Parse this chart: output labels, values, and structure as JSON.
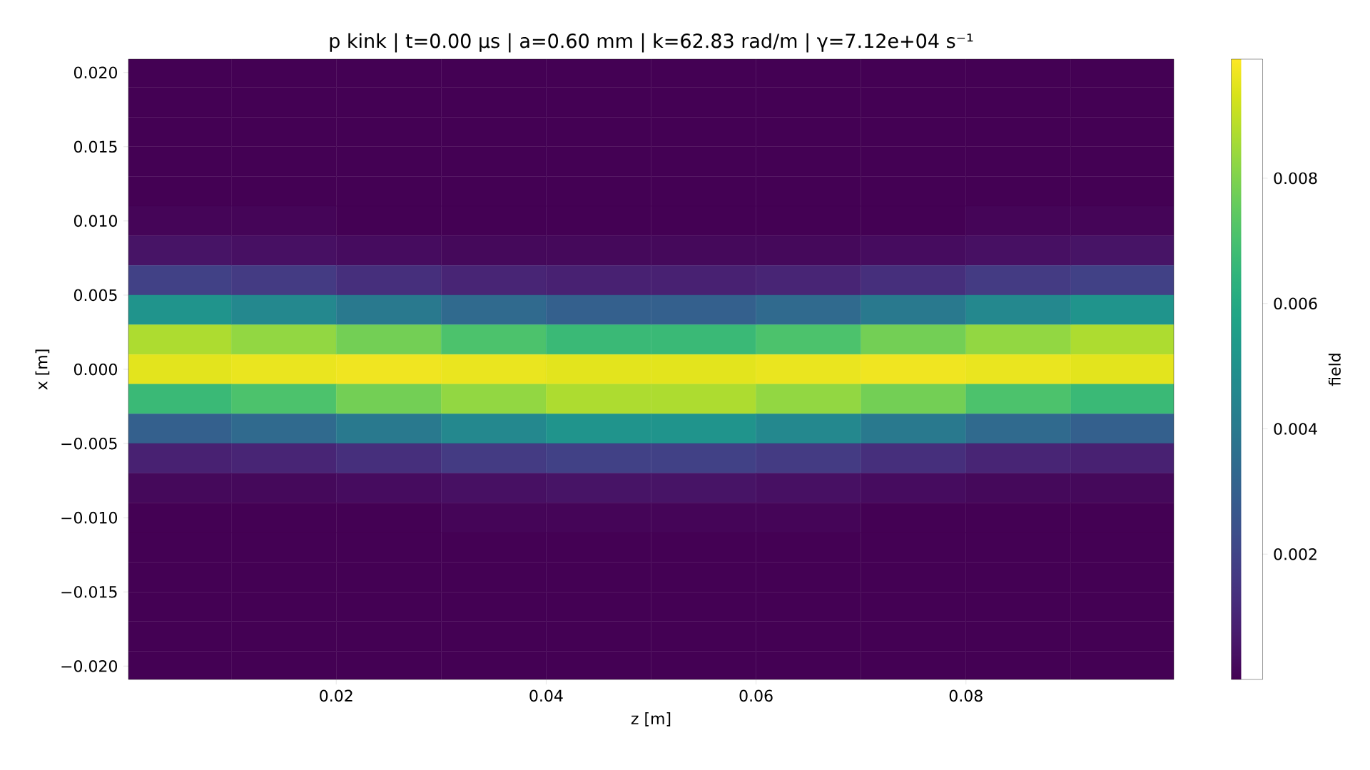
{
  "chart_data": {
    "type": "heatmap",
    "title": "p kink | t=0.00 μs | a=0.60 mm | k=62.83 rad/m | γ=7.12e+04 s⁻¹",
    "xlabel": "z [m]",
    "ylabel": "x [m]",
    "clabel": "field",
    "x": [
      0.005,
      0.015,
      0.025,
      0.035,
      0.045,
      0.055,
      0.065,
      0.075,
      0.085,
      0.095
    ],
    "y": [
      0.02,
      0.018,
      0.016,
      0.014,
      0.012,
      0.01,
      0.008,
      0.006,
      0.004,
      0.002,
      0.0,
      -0.002,
      -0.004,
      -0.006,
      -0.008,
      -0.01,
      -0.012,
      -0.014,
      -0.016,
      -0.018,
      -0.02
    ],
    "cells": [
      [
        0,
        0,
        0,
        0,
        0,
        0,
        0,
        0,
        0,
        0
      ],
      [
        0,
        0,
        0,
        0,
        0,
        0,
        0,
        0,
        0,
        0
      ],
      [
        0,
        0,
        0,
        0,
        0,
        0,
        0,
        0,
        0,
        0
      ],
      [
        0,
        0,
        0,
        0,
        0,
        0,
        0,
        0,
        0,
        0
      ],
      [
        0,
        0,
        0,
        0,
        0,
        0,
        0,
        0,
        0,
        0
      ],
      [
        0.0001,
        0.0001,
        0,
        0,
        0,
        0,
        0,
        0,
        0.0001,
        0.0001
      ],
      [
        0.0005,
        0.0004,
        0.0003,
        0.0002,
        0.0002,
        0.0002,
        0.0002,
        0.0003,
        0.0004,
        0.0005
      ],
      [
        0.0019,
        0.0017,
        0.0013,
        0.001,
        0.0009,
        0.0009,
        0.001,
        0.0013,
        0.0017,
        0.0019
      ],
      [
        0.0051,
        0.0046,
        0.004,
        0.0034,
        0.003,
        0.003,
        0.0034,
        0.004,
        0.0046,
        0.0051
      ],
      [
        0.0087,
        0.0083,
        0.0078,
        0.0071,
        0.0067,
        0.0067,
        0.0071,
        0.0078,
        0.0083,
        0.0087
      ],
      [
        0.0095,
        0.0096,
        0.0097,
        0.0096,
        0.0095,
        0.0095,
        0.0096,
        0.0097,
        0.0096,
        0.0095
      ],
      [
        0.0067,
        0.0071,
        0.0078,
        0.0083,
        0.0087,
        0.0087,
        0.0083,
        0.0078,
        0.0071,
        0.0067
      ],
      [
        0.003,
        0.0034,
        0.004,
        0.0046,
        0.0051,
        0.0051,
        0.0046,
        0.004,
        0.0034,
        0.003
      ],
      [
        0.0009,
        0.001,
        0.0013,
        0.0017,
        0.0019,
        0.0019,
        0.0017,
        0.0013,
        0.001,
        0.0009
      ],
      [
        0.0002,
        0.0002,
        0.0003,
        0.0004,
        0.0005,
        0.0005,
        0.0004,
        0.0003,
        0.0002,
        0.0002
      ],
      [
        0,
        0,
        0,
        0.0001,
        0.0001,
        0.0001,
        0.0001,
        0,
        0,
        0
      ],
      [
        0,
        0,
        0,
        0,
        0,
        0,
        0,
        0,
        0,
        0
      ],
      [
        0,
        0,
        0,
        0,
        0,
        0,
        0,
        0,
        0,
        0
      ],
      [
        0,
        0,
        0,
        0,
        0,
        0,
        0,
        0,
        0,
        0
      ],
      [
        0,
        0,
        0,
        0,
        0,
        0,
        0,
        0,
        0,
        0
      ],
      [
        0,
        0,
        0,
        0,
        0,
        0,
        0,
        0,
        0,
        0
      ]
    ],
    "xlim": [
      0.0002,
      0.0998
    ],
    "ylim": [
      -0.0209,
      0.0209
    ],
    "xticks": [
      0.02,
      0.04,
      0.06,
      0.08
    ],
    "yticks": [
      {
        "value": -0.02,
        "label": "−0.020"
      },
      {
        "value": -0.015,
        "label": "−0.015"
      },
      {
        "value": -0.01,
        "label": "−0.010"
      },
      {
        "value": -0.005,
        "label": "−0.005"
      },
      {
        "value": 0.0,
        "label": "0.000"
      },
      {
        "value": 0.005,
        "label": "0.005"
      },
      {
        "value": 0.01,
        "label": "0.010"
      },
      {
        "value": 0.015,
        "label": "0.015"
      },
      {
        "value": 0.02,
        "label": "0.020"
      }
    ],
    "clim": [
      0,
      0.0099
    ],
    "cticks": [
      0.002,
      0.004,
      0.006,
      0.008
    ]
  }
}
